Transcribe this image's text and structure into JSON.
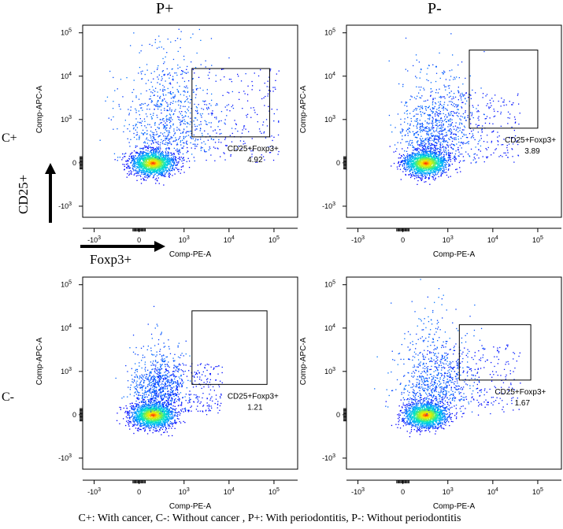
{
  "column_headers": [
    "P+",
    "P-"
  ],
  "row_labels": [
    "C+",
    "C-"
  ],
  "indicators": {
    "y_marker": "CD25+",
    "x_marker": "Foxp3+"
  },
  "caption": "C+: With cancer, C-: Without cancer , P+: With periodontitis, P-: Without periodontitis",
  "colors": {
    "density_low": "#0000ff",
    "density_mid": "#00e5ff",
    "density_high_mid": "#ffee00",
    "density_high": "#ff0000",
    "gate": "#000000"
  },
  "chart_data": [
    {
      "type": "scatter",
      "subtype": "flow-cytometry density plot",
      "row": "C+",
      "column": "P+",
      "xlabel": "Comp-PE-A",
      "ylabel": "Comp-APC-A",
      "x_ticks": [
        "-10^3",
        "0",
        "10^3",
        "10^4",
        "10^5"
      ],
      "y_ticks": [
        "10^5",
        "10^4",
        "10^3",
        "0",
        "-10^3"
      ],
      "x_scale": "biexponential",
      "y_scale": "biexponential",
      "gate": {
        "name": "CD25+Foxp3+",
        "percent": "4.92",
        "x_range": [
          1500,
          80000
        ],
        "y_range": [
          600,
          15000
        ]
      },
      "population_center": [
        300,
        0
      ],
      "spread": "broad"
    },
    {
      "type": "scatter",
      "subtype": "flow-cytometry density plot",
      "row": "C+",
      "column": "P-",
      "xlabel": "Comp-PE-A",
      "ylabel": "Comp-APC-A",
      "x_ticks": [
        "-10^3",
        "0",
        "10^3",
        "10^4",
        "10^5"
      ],
      "y_ticks": [
        "10^5",
        "10^4",
        "10^3",
        "0",
        "-10^3"
      ],
      "x_scale": "biexponential",
      "y_scale": "biexponential",
      "gate": {
        "name": "CD25+Foxp3+",
        "percent": "3.89",
        "x_range": [
          3000,
          100000
        ],
        "y_range": [
          800,
          40000
        ]
      },
      "population_center": [
        500,
        0
      ],
      "spread": "moderate"
    },
    {
      "type": "scatter",
      "subtype": "flow-cytometry density plot",
      "row": "C-",
      "column": "P+",
      "xlabel": "Comp-PE-A",
      "ylabel": "Comp-APC-A",
      "x_ticks": [
        "-10^3",
        "0",
        "10^3",
        "10^4",
        "10^5"
      ],
      "y_ticks": [
        "10^5",
        "10^4",
        "10^3",
        "0",
        "-10^3"
      ],
      "x_scale": "biexponential",
      "y_scale": "biexponential",
      "gate": {
        "name": "CD25+Foxp3+",
        "percent": "1.21",
        "x_range": [
          1500,
          70000
        ],
        "y_range": [
          700,
          25000
        ]
      },
      "population_center": [
        300,
        0
      ],
      "spread": "narrow"
    },
    {
      "type": "scatter",
      "subtype": "flow-cytometry density plot",
      "row": "C-",
      "column": "P-",
      "xlabel": "Comp-PE-A",
      "ylabel": "Comp-APC-A",
      "x_ticks": [
        "-10^3",
        "0",
        "10^3",
        "10^4",
        "10^5"
      ],
      "y_ticks": [
        "10^5",
        "10^4",
        "10^3",
        "0",
        "-10^3"
      ],
      "x_scale": "biexponential",
      "y_scale": "biexponential",
      "gate": {
        "name": "CD25+Foxp3+",
        "percent": "1.67",
        "x_range": [
          1800,
          70000
        ],
        "y_range": [
          800,
          12000
        ]
      },
      "population_center": [
        500,
        0
      ],
      "spread": "moderate"
    }
  ]
}
